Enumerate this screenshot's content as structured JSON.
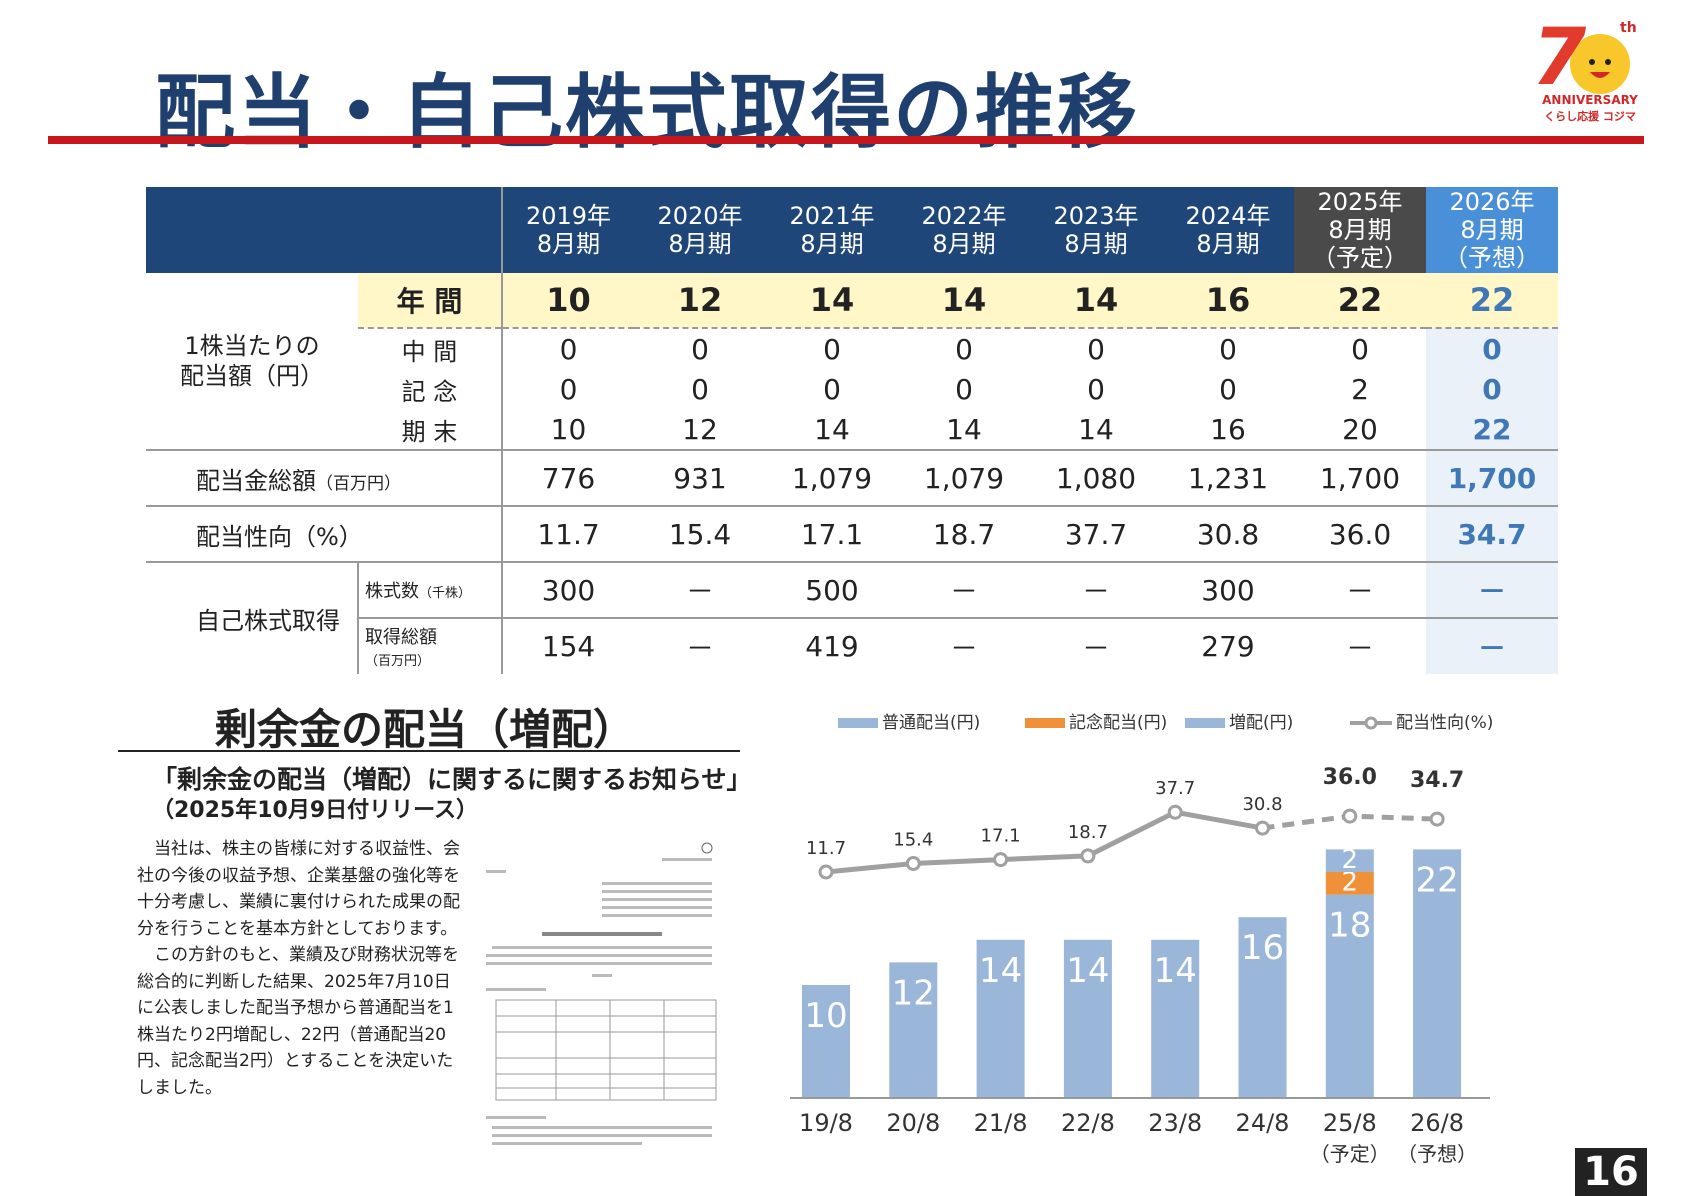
{
  "title": "配当・自己株式取得の推移",
  "logo": {
    "line1": "7",
    "sup": "th",
    "line2": "ANNIVERSARY",
    "line3": "くらし応援 コジマ"
  },
  "table": {
    "years": [
      "2019年\n8月期",
      "2020年\n8月期",
      "2021年\n8月期",
      "2022年\n8月期",
      "2023年\n8月期",
      "2024年\n8月期",
      "2025年\n8月期\n（予定）",
      "2026年\n8月期\n（予想）"
    ],
    "per_share_label": "1株当たりの\n配当額（円）",
    "annual_label": "年 間",
    "annual": [
      "10",
      "12",
      "14",
      "14",
      "14",
      "16",
      "22",
      "22"
    ],
    "interim_label": "中 間",
    "interim": [
      "0",
      "0",
      "0",
      "0",
      "0",
      "0",
      "0",
      "0"
    ],
    "commem_label": "記 念",
    "commem": [
      "0",
      "0",
      "0",
      "0",
      "0",
      "0",
      "2",
      "0"
    ],
    "yearend_label": "期 末",
    "yearend": [
      "10",
      "12",
      "14",
      "14",
      "14",
      "16",
      "20",
      "22"
    ],
    "total_label": "配当金総額",
    "total_unit": "（百万円）",
    "total": [
      "776",
      "931",
      "1,079",
      "1,079",
      "1,080",
      "1,231",
      "1,700",
      "1,700"
    ],
    "payout_label": "配当性向（%）",
    "payout": [
      "11.7",
      "15.4",
      "17.1",
      "18.7",
      "37.7",
      "30.8",
      "36.0",
      "34.7"
    ],
    "buyback_label": "自己株式取得",
    "shares_label": "株式数",
    "shares_unit": "（千株）",
    "shares": [
      "300",
      "－",
      "500",
      "－",
      "－",
      "300",
      "－",
      "－"
    ],
    "amount_label": "取得総額",
    "amount_unit": "（百万円）",
    "amount": [
      "154",
      "－",
      "419",
      "－",
      "－",
      "279",
      "－",
      "－"
    ]
  },
  "section": {
    "title": "剰余金の配当（増配）",
    "notice_title": "「剰余金の配当（増配）に関するに関するお知らせ」",
    "notice_date": "（2025年10月9日付リリース）",
    "body_p1": "当社は、株主の皆様に対する収益性、会社の今後の収益予想、企業基盤の強化等を十分考慮し、業績に裏付けられた成果の配分を行うことを基本方針としております。",
    "body_p2": "この方針のもと、業績及び財務状況等を総合的に判断した結果、2025年7月10日に公表しました配当予想から普通配当を1株当たり2円増配し、22円（普通配当20円、記念配当2円）とすることを決定いたしました。"
  },
  "chart_data": {
    "type": "bar",
    "categories": [
      "19/8",
      "20/8",
      "21/8",
      "22/8",
      "23/8",
      "24/8",
      "25/8",
      "26/8"
    ],
    "category_notes": [
      "",
      "",
      "",
      "",
      "",
      "",
      "（予定）",
      "（予想）"
    ],
    "series": [
      {
        "name": "普通配当(円)",
        "values": [
          10,
          12,
          14,
          14,
          14,
          16,
          18,
          22
        ],
        "color": "#9ab6d8"
      },
      {
        "name": "記念配当(円)",
        "values": [
          0,
          0,
          0,
          0,
          0,
          0,
          2,
          0
        ],
        "color": "#f0913a"
      },
      {
        "name": "増配(円)",
        "values": [
          0,
          0,
          0,
          0,
          0,
          0,
          2,
          0
        ],
        "color": "#9ab6d8"
      }
    ],
    "line": {
      "name": "配当性向(%)",
      "values": [
        11.7,
        15.4,
        17.1,
        18.7,
        37.7,
        30.8,
        36.0,
        34.7
      ],
      "color": "#a0a0a0",
      "dashed_from_index": 5
    },
    "legend_position": "top",
    "stacked": true
  },
  "page_number": "16"
}
